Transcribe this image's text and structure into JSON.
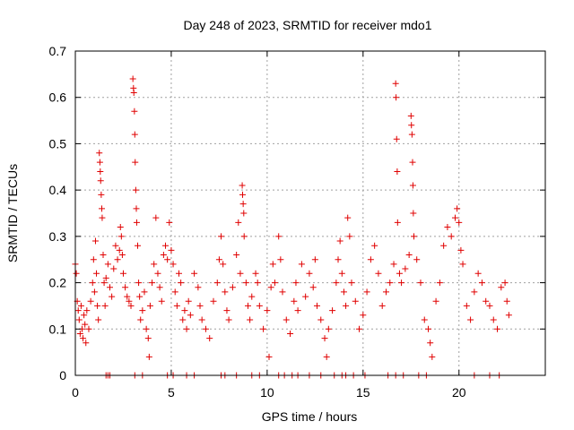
{
  "chart_data": {
    "type": "scatter",
    "title": "Day 248 of 2023, SRMTID for receiver mdo1",
    "xlabel": "GPS time / hours",
    "ylabel": "SRMTID / TECUs",
    "xlim": [
      0,
      24.5
    ],
    "ylim": [
      0,
      0.7
    ],
    "xticks": [
      0,
      5,
      10,
      15,
      20
    ],
    "xtick_labels": [
      "0",
      "5",
      "10",
      "15",
      "20"
    ],
    "yticks": [
      0,
      0.1,
      0.2,
      0.3,
      0.4,
      0.5,
      0.6,
      0.7
    ],
    "ytick_labels": [
      "0",
      "0.1",
      "0.2",
      "0.3",
      "0.4",
      "0.5",
      "0.6",
      "0.7"
    ],
    "grid": true,
    "marker": "+",
    "color": "#e00000",
    "series": [
      {
        "name": "SRMTID",
        "points": [
          [
            0.0,
            0.24
          ],
          [
            0.05,
            0.22
          ],
          [
            0.1,
            0.16
          ],
          [
            0.15,
            0.14
          ],
          [
            0.2,
            0.12
          ],
          [
            0.25,
            0.09
          ],
          [
            0.3,
            0.15
          ],
          [
            0.35,
            0.1
          ],
          [
            0.4,
            0.08
          ],
          [
            0.45,
            0.13
          ],
          [
            0.5,
            0.11
          ],
          [
            0.55,
            0.07
          ],
          [
            0.6,
            0.14
          ],
          [
            0.7,
            0.1
          ],
          [
            0.8,
            0.16
          ],
          [
            0.9,
            0.2
          ],
          [
            0.95,
            0.25
          ],
          [
            1.0,
            0.18
          ],
          [
            1.05,
            0.29
          ],
          [
            1.1,
            0.22
          ],
          [
            1.15,
            0.15
          ],
          [
            1.2,
            0.12
          ],
          [
            1.25,
            0.48
          ],
          [
            1.28,
            0.46
          ],
          [
            1.3,
            0.44
          ],
          [
            1.32,
            0.42
          ],
          [
            1.35,
            0.39
          ],
          [
            1.38,
            0.36
          ],
          [
            1.4,
            0.34
          ],
          [
            1.45,
            0.26
          ],
          [
            1.5,
            0.2
          ],
          [
            1.55,
            0.15
          ],
          [
            1.6,
            0.21
          ],
          [
            1.7,
            0.24
          ],
          [
            1.8,
            0.19
          ],
          [
            1.9,
            0.17
          ],
          [
            2.0,
            0.23
          ],
          [
            2.1,
            0.28
          ],
          [
            2.2,
            0.25
          ],
          [
            2.3,
            0.27
          ],
          [
            2.35,
            0.32
          ],
          [
            2.4,
            0.3
          ],
          [
            2.45,
            0.26
          ],
          [
            2.5,
            0.22
          ],
          [
            2.6,
            0.19
          ],
          [
            2.7,
            0.17
          ],
          [
            2.8,
            0.16
          ],
          [
            2.9,
            0.15
          ],
          [
            3.0,
            0.64
          ],
          [
            3.03,
            0.62
          ],
          [
            3.05,
            0.61
          ],
          [
            3.08,
            0.57
          ],
          [
            3.1,
            0.52
          ],
          [
            3.12,
            0.46
          ],
          [
            3.15,
            0.4
          ],
          [
            3.18,
            0.36
          ],
          [
            3.2,
            0.33
          ],
          [
            3.25,
            0.28
          ],
          [
            3.3,
            0.2
          ],
          [
            3.35,
            0.17
          ],
          [
            3.4,
            0.12
          ],
          [
            3.5,
            0.14
          ],
          [
            3.6,
            0.18
          ],
          [
            3.7,
            0.1
          ],
          [
            3.8,
            0.08
          ],
          [
            3.85,
            0.04
          ],
          [
            3.9,
            0.15
          ],
          [
            4.0,
            0.2
          ],
          [
            4.1,
            0.24
          ],
          [
            4.2,
            0.34
          ],
          [
            4.3,
            0.22
          ],
          [
            4.4,
            0.19
          ],
          [
            4.5,
            0.16
          ],
          [
            4.6,
            0.26
          ],
          [
            4.7,
            0.28
          ],
          [
            4.8,
            0.25
          ],
          [
            4.9,
            0.33
          ],
          [
            5.0,
            0.27
          ],
          [
            5.1,
            0.24
          ],
          [
            5.2,
            0.18
          ],
          [
            5.3,
            0.15
          ],
          [
            5.4,
            0.22
          ],
          [
            5.5,
            0.2
          ],
          [
            5.6,
            0.12
          ],
          [
            5.7,
            0.14
          ],
          [
            5.8,
            0.1
          ],
          [
            5.9,
            0.16
          ],
          [
            6.0,
            0.13
          ],
          [
            6.2,
            0.22
          ],
          [
            6.4,
            0.19
          ],
          [
            6.5,
            0.15
          ],
          [
            6.6,
            0.12
          ],
          [
            6.8,
            0.1
          ],
          [
            7.0,
            0.08
          ],
          [
            7.2,
            0.16
          ],
          [
            7.4,
            0.2
          ],
          [
            7.5,
            0.25
          ],
          [
            7.6,
            0.3
          ],
          [
            7.7,
            0.24
          ],
          [
            7.8,
            0.18
          ],
          [
            7.9,
            0.14
          ],
          [
            8.0,
            0.12
          ],
          [
            8.2,
            0.19
          ],
          [
            8.4,
            0.26
          ],
          [
            8.5,
            0.33
          ],
          [
            8.6,
            0.22
          ],
          [
            8.7,
            0.41
          ],
          [
            8.72,
            0.39
          ],
          [
            8.75,
            0.37
          ],
          [
            8.78,
            0.35
          ],
          [
            8.8,
            0.3
          ],
          [
            8.9,
            0.2
          ],
          [
            9.0,
            0.15
          ],
          [
            9.1,
            0.12
          ],
          [
            9.2,
            0.17
          ],
          [
            9.4,
            0.22
          ],
          [
            9.5,
            0.2
          ],
          [
            9.6,
            0.15
          ],
          [
            9.8,
            0.1
          ],
          [
            10.0,
            0.14
          ],
          [
            10.1,
            0.04
          ],
          [
            10.2,
            0.19
          ],
          [
            10.3,
            0.24
          ],
          [
            10.4,
            0.2
          ],
          [
            10.6,
            0.3
          ],
          [
            10.7,
            0.25
          ],
          [
            10.8,
            0.18
          ],
          [
            11.0,
            0.12
          ],
          [
            11.2,
            0.09
          ],
          [
            11.4,
            0.16
          ],
          [
            11.5,
            0.2
          ],
          [
            11.6,
            0.14
          ],
          [
            11.8,
            0.24
          ],
          [
            12.0,
            0.17
          ],
          [
            12.2,
            0.22
          ],
          [
            12.4,
            0.19
          ],
          [
            12.5,
            0.25
          ],
          [
            12.6,
            0.15
          ],
          [
            12.8,
            0.12
          ],
          [
            13.0,
            0.08
          ],
          [
            13.1,
            0.04
          ],
          [
            13.2,
            0.1
          ],
          [
            13.4,
            0.14
          ],
          [
            13.6,
            0.2
          ],
          [
            13.7,
            0.25
          ],
          [
            13.8,
            0.29
          ],
          [
            13.9,
            0.22
          ],
          [
            14.0,
            0.18
          ],
          [
            14.1,
            0.15
          ],
          [
            14.2,
            0.34
          ],
          [
            14.3,
            0.3
          ],
          [
            14.4,
            0.2
          ],
          [
            14.6,
            0.16
          ],
          [
            14.8,
            0.1
          ],
          [
            15.0,
            0.13
          ],
          [
            15.2,
            0.18
          ],
          [
            15.4,
            0.25
          ],
          [
            15.6,
            0.28
          ],
          [
            15.8,
            0.22
          ],
          [
            16.0,
            0.15
          ],
          [
            16.2,
            0.18
          ],
          [
            16.4,
            0.2
          ],
          [
            16.6,
            0.24
          ],
          [
            16.7,
            0.63
          ],
          [
            16.72,
            0.6
          ],
          [
            16.75,
            0.51
          ],
          [
            16.78,
            0.44
          ],
          [
            16.8,
            0.33
          ],
          [
            16.9,
            0.22
          ],
          [
            17.0,
            0.2
          ],
          [
            17.2,
            0.23
          ],
          [
            17.4,
            0.26
          ],
          [
            17.5,
            0.56
          ],
          [
            17.52,
            0.54
          ],
          [
            17.55,
            0.52
          ],
          [
            17.58,
            0.46
          ],
          [
            17.6,
            0.41
          ],
          [
            17.62,
            0.35
          ],
          [
            17.65,
            0.3
          ],
          [
            17.8,
            0.25
          ],
          [
            18.0,
            0.2
          ],
          [
            18.2,
            0.12
          ],
          [
            18.4,
            0.1
          ],
          [
            18.5,
            0.07
          ],
          [
            18.6,
            0.04
          ],
          [
            18.8,
            0.16
          ],
          [
            19.0,
            0.2
          ],
          [
            19.2,
            0.28
          ],
          [
            19.4,
            0.32
          ],
          [
            19.6,
            0.3
          ],
          [
            19.8,
            0.34
          ],
          [
            19.9,
            0.36
          ],
          [
            20.0,
            0.33
          ],
          [
            20.1,
            0.27
          ],
          [
            20.2,
            0.24
          ],
          [
            20.4,
            0.15
          ],
          [
            20.6,
            0.12
          ],
          [
            20.8,
            0.18
          ],
          [
            21.0,
            0.22
          ],
          [
            21.2,
            0.2
          ],
          [
            21.4,
            0.16
          ],
          [
            21.6,
            0.15
          ],
          [
            21.8,
            0.12
          ],
          [
            22.0,
            0.1
          ],
          [
            22.2,
            0.19
          ],
          [
            22.4,
            0.2
          ],
          [
            22.5,
            0.16
          ],
          [
            22.6,
            0.13
          ]
        ]
      }
    ],
    "zero_markers_x": [
      1.6,
      1.7,
      1.8,
      3.1,
      3.5,
      4.8,
      5.1,
      5.8,
      6.2,
      7.6,
      7.8,
      8.4,
      9.2,
      9.6,
      10.6,
      10.9,
      11.3,
      11.6,
      12.2,
      12.8,
      13.5,
      13.9,
      14.1,
      14.5,
      15.1,
      16.3,
      16.7,
      17.1,
      17.9,
      18.3,
      20.8,
      21.6,
      22.1
    ]
  }
}
